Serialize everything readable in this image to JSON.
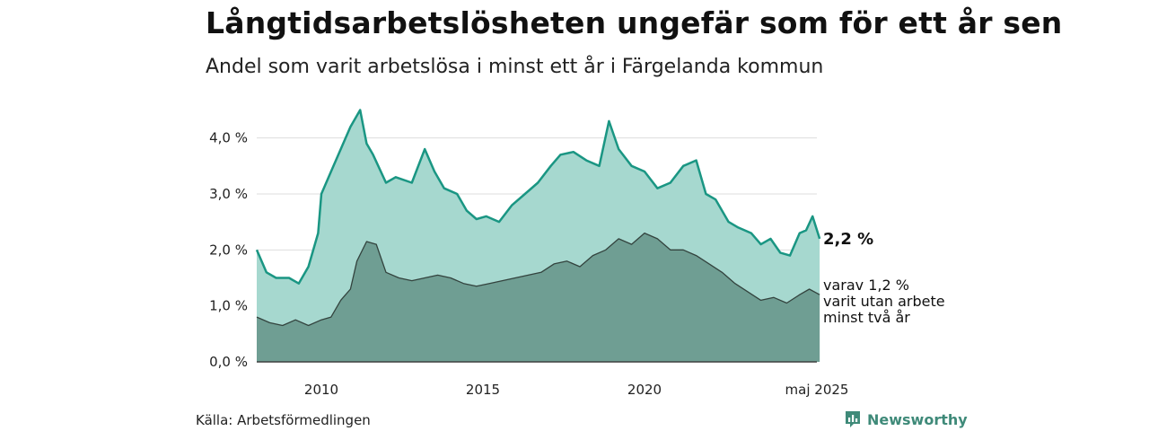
{
  "title": "Långtidsarbetslösheten ungefär som för ett år sen",
  "subtitle": "Andel som varit arbetslösa i minst ett år i Färgelanda kommun",
  "source": "Källa: Arbetsförmedlingen",
  "brand": "Newsworthy",
  "colors": {
    "upper_fill": "#a6d8cf",
    "upper_line": "#1a9683",
    "lower_fill": "#6f9e93",
    "lower_line": "#33433e",
    "grid": "#dddddd"
  },
  "chart_data": {
    "type": "area",
    "x_start": "2008-01",
    "x_end": "2025-05",
    "ylim": [
      0,
      4.7
    ],
    "yticks": [
      0,
      1,
      2,
      3,
      4
    ],
    "ytick_labels": [
      "0,0 %",
      "1,0 %",
      "2,0 %",
      "3,0 %",
      "4,0 %"
    ],
    "xticks": [
      2010,
      2015,
      2020
    ],
    "xtick_labels": [
      "2010",
      "2015",
      "2020"
    ],
    "x_end_label": "maj 2025",
    "grid": true,
    "series": [
      {
        "name": "minst ett år",
        "x": [
          2008.0,
          2008.3,
          2008.6,
          2009.0,
          2009.3,
          2009.6,
          2009.9,
          2010.0,
          2010.3,
          2010.6,
          2010.9,
          2011.2,
          2011.4,
          2011.6,
          2012.0,
          2012.3,
          2012.8,
          2013.2,
          2013.5,
          2013.8,
          2014.2,
          2014.5,
          2014.8,
          2015.1,
          2015.5,
          2015.9,
          2016.3,
          2016.7,
          2017.1,
          2017.4,
          2017.8,
          2018.2,
          2018.6,
          2018.9,
          2019.2,
          2019.6,
          2020.0,
          2020.4,
          2020.8,
          2021.2,
          2021.6,
          2021.9,
          2022.2,
          2022.6,
          2022.9,
          2023.3,
          2023.6,
          2023.9,
          2024.2,
          2024.5,
          2024.8,
          2025.0,
          2025.2,
          2025.42
        ],
        "y": [
          2.0,
          1.6,
          1.5,
          1.5,
          1.4,
          1.7,
          2.3,
          3.0,
          3.4,
          3.8,
          4.2,
          4.5,
          3.9,
          3.7,
          3.2,
          3.3,
          3.2,
          3.8,
          3.4,
          3.1,
          3.0,
          2.7,
          2.55,
          2.6,
          2.5,
          2.8,
          3.0,
          3.2,
          3.5,
          3.7,
          3.75,
          3.6,
          3.5,
          4.3,
          3.8,
          3.5,
          3.4,
          3.1,
          3.2,
          3.5,
          3.6,
          3.0,
          2.9,
          2.5,
          2.4,
          2.3,
          2.1,
          2.2,
          1.95,
          1.9,
          2.3,
          2.35,
          2.6,
          2.2
        ]
      },
      {
        "name": "varav minst två år",
        "x": [
          2008.0,
          2008.4,
          2008.8,
          2009.2,
          2009.6,
          2010.0,
          2010.3,
          2010.6,
          2010.9,
          2011.1,
          2011.4,
          2011.7,
          2012.0,
          2012.4,
          2012.8,
          2013.2,
          2013.6,
          2014.0,
          2014.4,
          2014.8,
          2015.2,
          2015.6,
          2016.0,
          2016.4,
          2016.8,
          2017.2,
          2017.6,
          2018.0,
          2018.4,
          2018.8,
          2019.2,
          2019.6,
          2020.0,
          2020.4,
          2020.8,
          2021.2,
          2021.6,
          2022.0,
          2022.4,
          2022.8,
          2023.2,
          2023.6,
          2024.0,
          2024.4,
          2024.8,
          2025.1,
          2025.42
        ],
        "y": [
          0.8,
          0.7,
          0.65,
          0.75,
          0.65,
          0.75,
          0.8,
          1.1,
          1.3,
          1.8,
          2.15,
          2.1,
          1.6,
          1.5,
          1.45,
          1.5,
          1.55,
          1.5,
          1.4,
          1.35,
          1.4,
          1.45,
          1.5,
          1.55,
          1.6,
          1.75,
          1.8,
          1.7,
          1.9,
          2.0,
          2.2,
          2.1,
          2.3,
          2.2,
          2.0,
          2.0,
          1.9,
          1.75,
          1.6,
          1.4,
          1.25,
          1.1,
          1.15,
          1.05,
          1.2,
          1.3,
          1.2
        ]
      }
    ],
    "end_labels": {
      "upper_value": "2,2 %",
      "lower_text": [
        "varav 1,2 %",
        "varit utan arbete",
        "minst två år"
      ]
    }
  }
}
